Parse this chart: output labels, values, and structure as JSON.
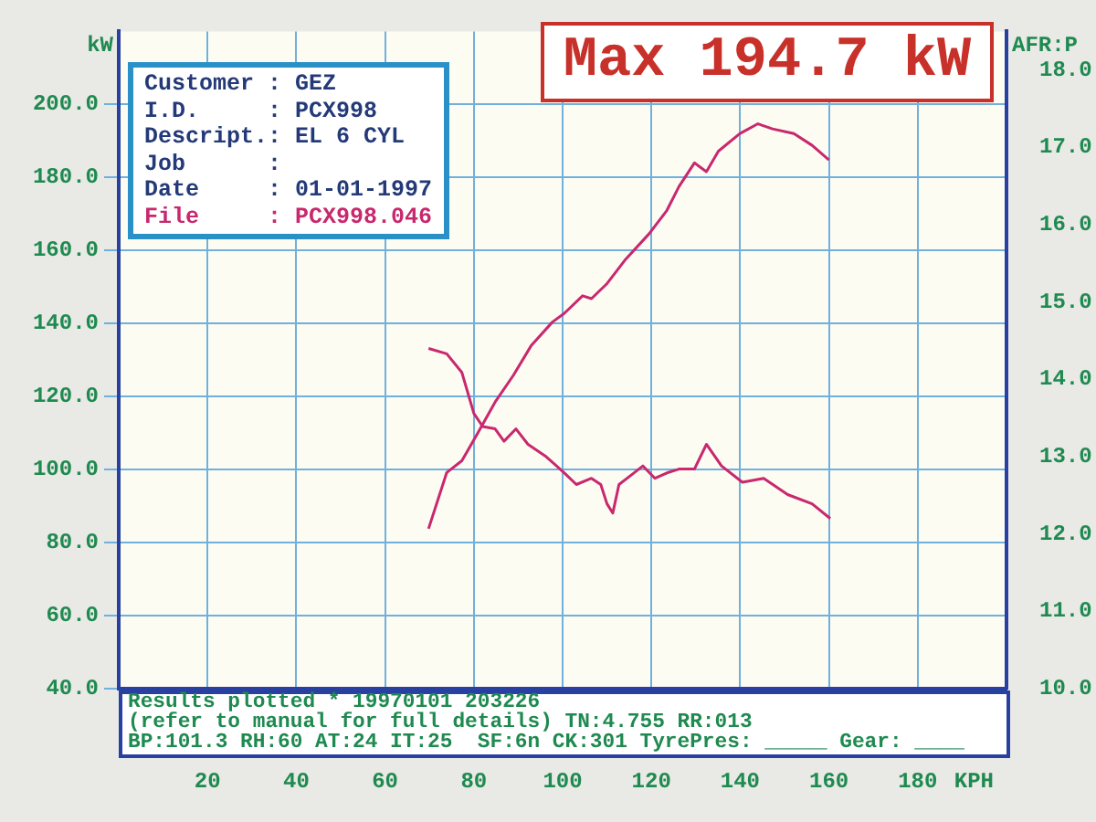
{
  "chart_data": {
    "type": "line",
    "xlabel": "KPH",
    "ylabel": "kW",
    "y2label": "AFR:P",
    "annotations": [
      "Max 194.7 kW",
      "Customer : GEZ",
      "I.D.     : PCX998",
      "Descript.: EL 6 CYL",
      "Job      :",
      "Date     : 01-01-1997",
      "File     : PCX998.046",
      "Results plotted * 19970101 203226",
      "(refer to manual for full details) TN:4.755 RR:013",
      "BP:101.3 RH:60 AT:24 IT:25  SF:6n CK:301 TyrePres: _____ Gear: ____"
    ],
    "series": [
      {
        "color": "#c8286e",
        "x": [
          69.8,
          73.9,
          77.3,
          80.7,
          84.8,
          88.9,
          92.9,
          97.7,
          100.4,
          104.5,
          106.5,
          109.9,
          114,
          119.5,
          123.5,
          126.2,
          129.7,
          132.4,
          135.1,
          139.9,
          144,
          147.3,
          152.1,
          156.2,
          160
        ],
        "values": [
          83.8,
          99.2,
          102.4,
          109.6,
          118.5,
          125.8,
          133.9,
          140.4,
          142.8,
          147.6,
          146.8,
          150.8,
          157.3,
          164.6,
          171,
          177.5,
          184,
          181.6,
          187.2,
          192,
          194.7,
          193.3,
          192,
          188.8,
          184.8
        ]
      },
      {
        "color": "#c8286e",
        "axis": "y2",
        "x": [
          69.8,
          73.9,
          77.3,
          80,
          82,
          84.8,
          86.8,
          89.5,
          92.2,
          96.3,
          100.4,
          103.1,
          106.5,
          108.6,
          110,
          111.3,
          112.7,
          115.4,
          118.1,
          120.8,
          123.5,
          126.2,
          129.7,
          132.4,
          135.8,
          140.5,
          145.3,
          150.7,
          156.2,
          160.3
        ],
        "values": [
          14.4,
          14.33,
          14.09,
          13.56,
          13.39,
          13.36,
          13.2,
          13.36,
          13.16,
          13.0,
          12.79,
          12.64,
          12.72,
          12.64,
          12.39,
          12.27,
          12.64,
          12.76,
          12.88,
          12.72,
          12.79,
          12.84,
          12.84,
          13.16,
          12.88,
          12.67,
          12.72,
          12.51,
          12.39,
          12.2
        ]
      }
    ],
    "xlim": [
      0,
      200
    ],
    "xticks": [
      20,
      40,
      60,
      80,
      100,
      120,
      140,
      160,
      180
    ],
    "ylim": [
      40,
      220
    ],
    "yticks": [
      {
        "value": 40,
        "label": "40.0"
      },
      {
        "value": 60,
        "label": "60.0"
      },
      {
        "value": 80,
        "label": "80.0"
      },
      {
        "value": 100,
        "label": "100.0"
      },
      {
        "value": 120,
        "label": "120.0"
      },
      {
        "value": 140,
        "label": "140.0"
      },
      {
        "value": 160,
        "label": "160.0"
      },
      {
        "value": 180,
        "label": "180.0"
      },
      {
        "value": 200,
        "label": "200.0"
      }
    ],
    "y2lim": [
      10,
      18.5
    ],
    "y2ticks": [
      {
        "value": 10,
        "label": "10.0"
      },
      {
        "value": 11,
        "label": "11.0"
      },
      {
        "value": 12,
        "label": "12.0"
      },
      {
        "value": 13,
        "label": "13.0"
      },
      {
        "value": 14,
        "label": "14.0"
      },
      {
        "value": 15,
        "label": "15.0"
      },
      {
        "value": 16,
        "label": "16.0"
      },
      {
        "value": 17,
        "label": "17.0"
      },
      {
        "value": 18,
        "label": "18.0"
      }
    ],
    "grid": true,
    "legend": false,
    "marker": "none",
    "line_style": "solid"
  }
}
